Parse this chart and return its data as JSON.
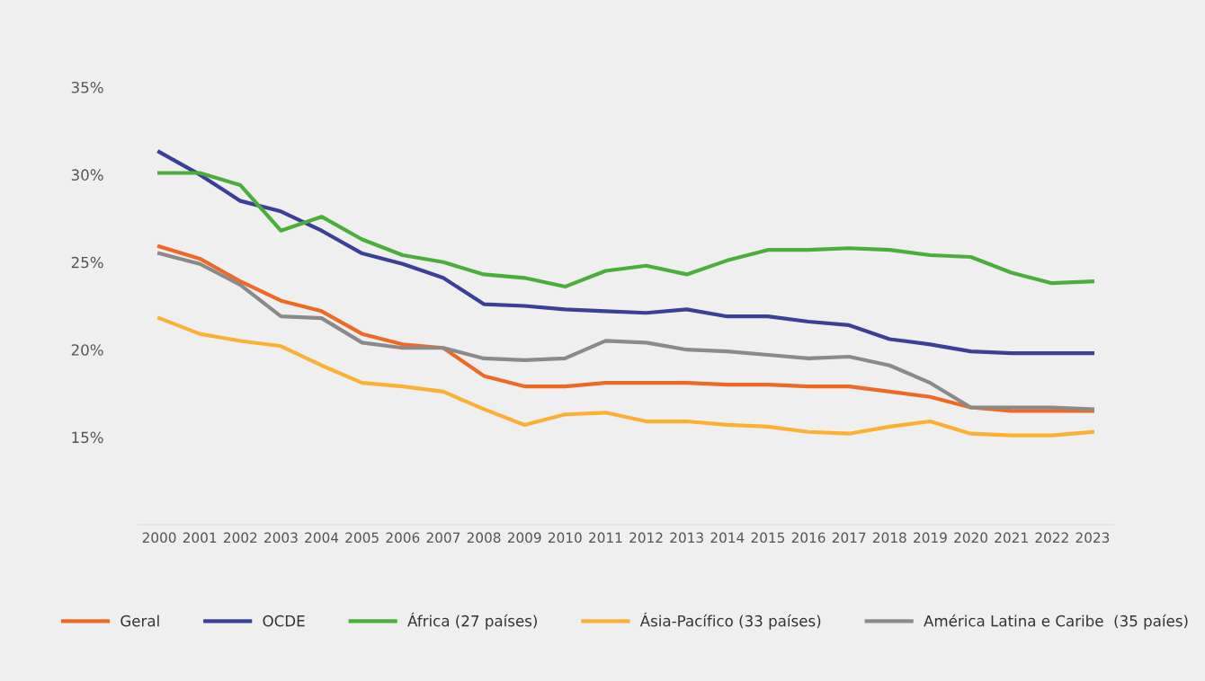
{
  "chart_data": {
    "type": "line",
    "categories": [
      "2000",
      "2001",
      "2002",
      "2003",
      "2004",
      "2005",
      "2006",
      "2007",
      "2008",
      "2009",
      "2010",
      "2011",
      "2012",
      "2013",
      "2014",
      "2015",
      "2016",
      "2017",
      "2018",
      "2019",
      "2020",
      "2021",
      "2022",
      "2023"
    ],
    "series": [
      {
        "name": "Geral",
        "color": "#ee6a24",
        "values": [
          25.9,
          25.2,
          23.9,
          22.8,
          22.2,
          20.9,
          20.3,
          20.1,
          18.5,
          17.9,
          17.9,
          18.1,
          18.1,
          18.1,
          18.0,
          18.0,
          17.9,
          17.9,
          17.6,
          17.3,
          16.7,
          16.5,
          16.5,
          16.5
        ]
      },
      {
        "name": "OCDE",
        "color": "#3a3f98",
        "values": [
          31.3,
          30.0,
          28.5,
          27.9,
          26.8,
          25.5,
          24.9,
          24.1,
          22.6,
          22.5,
          22.3,
          22.2,
          22.1,
          22.3,
          21.9,
          21.9,
          21.6,
          21.4,
          20.6,
          20.3,
          19.9,
          19.8,
          19.8,
          19.8
        ]
      },
      {
        "name": "África (27 países)",
        "color": "#4aaf3a",
        "values": [
          30.1,
          30.1,
          29.4,
          26.8,
          27.6,
          26.3,
          25.4,
          25.0,
          24.3,
          24.1,
          23.6,
          24.5,
          24.8,
          24.3,
          25.1,
          25.7,
          25.7,
          25.8,
          25.7,
          25.4,
          25.3,
          24.4,
          23.8,
          23.9
        ]
      },
      {
        "name": "Ásia-Pacífico (33 países)",
        "color": "#fbb034",
        "values": [
          21.8,
          20.9,
          20.5,
          20.2,
          19.1,
          18.1,
          17.9,
          17.6,
          16.6,
          15.7,
          16.3,
          16.4,
          15.9,
          15.9,
          15.7,
          15.6,
          15.3,
          15.2,
          15.6,
          15.9,
          15.2,
          15.1,
          15.1,
          15.3
        ]
      },
      {
        "name": "América Latina e Caribe  (35 paíes)",
        "color": "#8a8a8a",
        "values": [
          25.5,
          24.9,
          23.7,
          21.9,
          21.8,
          20.4,
          20.1,
          20.1,
          19.5,
          19.4,
          19.5,
          20.5,
          20.4,
          20.0,
          19.9,
          19.7,
          19.5,
          19.6,
          19.1,
          18.1,
          16.7,
          16.7,
          16.7,
          16.6
        ]
      }
    ],
    "ylim": [
      10,
      35
    ],
    "yticks": [
      {
        "value": 15,
        "label": "15%"
      },
      {
        "value": 20,
        "label": "20%"
      },
      {
        "value": 25,
        "label": "25%"
      },
      {
        "value": 30,
        "label": "30%"
      },
      {
        "value": 35,
        "label": "35%"
      }
    ],
    "grid": false,
    "legend": "bottom",
    "marker": "none",
    "line_style": "solid"
  }
}
